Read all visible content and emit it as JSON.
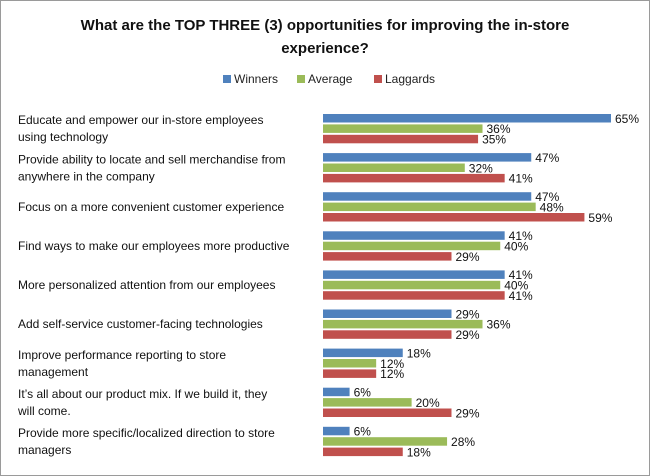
{
  "chart_data": {
    "type": "bar",
    "orientation": "horizontal",
    "title": "What are the TOP THREE (3) opportunities for improving the in-store experience?",
    "title_lines": [
      "What are the TOP THREE (3) opportunities for improving the in-store",
      "experience?"
    ],
    "xlabel": "",
    "ylabel": "",
    "xlim": [
      0,
      70
    ],
    "grid": false,
    "legend_position": "top",
    "value_suffix": "%",
    "categories": [
      [
        "Educate and empower our in-store employees",
        "using technology"
      ],
      [
        "Provide ability to locate and sell merchandise from",
        "anywhere in the company"
      ],
      [
        "Focus on a more convenient customer experience"
      ],
      [
        "Find ways to make our employees more productive"
      ],
      [
        "More personalized attention from our employees"
      ],
      [
        "Add self-service customer-facing technologies"
      ],
      [
        "Improve performance reporting to store",
        "management"
      ],
      [
        "It’s all about our product mix. If we build it, they",
        "will come."
      ],
      [
        "Provide more specific/localized direction to store",
        "managers"
      ]
    ],
    "series": [
      {
        "name": "Winners",
        "color": "#4f81bd",
        "values": [
          65,
          47,
          47,
          41,
          41,
          29,
          18,
          6,
          6
        ]
      },
      {
        "name": "Average",
        "color": "#9bbb59",
        "values": [
          36,
          32,
          48,
          40,
          40,
          36,
          12,
          20,
          28
        ]
      },
      {
        "name": "Laggards",
        "color": "#c0504d",
        "values": [
          35,
          41,
          59,
          29,
          41,
          29,
          12,
          29,
          18
        ]
      }
    ]
  }
}
